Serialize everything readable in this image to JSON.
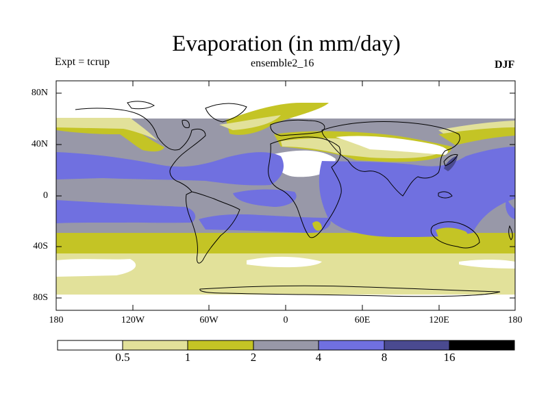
{
  "title": "Evaporation (in mm/day)",
  "subtitle_left": "Expt = tcrup",
  "subtitle_center": "ensemble2_16",
  "subtitle_right": "DJF",
  "lat_ticks": [
    "80N",
    "40N",
    "0",
    "40S",
    "80S"
  ],
  "lon_ticks": [
    "180",
    "120W",
    "60W",
    "0",
    "60E",
    "120E",
    "180"
  ],
  "colorbar": {
    "labels": [
      "0.5",
      "1",
      "2",
      "4",
      "8",
      "16"
    ],
    "colors": [
      "#ffffff",
      "#e2e19a",
      "#c4c425",
      "#9898a8",
      "#7070e0",
      "#4a4a90",
      "#000000"
    ]
  }
}
